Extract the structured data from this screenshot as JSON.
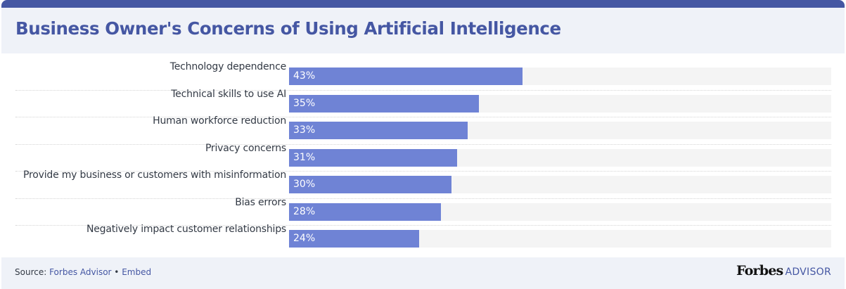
{
  "header": {
    "title": "Business Owner's Concerns of Using Artificial Intelligence"
  },
  "colors": {
    "brand": "#4557a3",
    "bar": "#6f83d5",
    "track": "#f4f4f4",
    "panel_bg": "#eff2f8"
  },
  "chart_data": {
    "type": "bar",
    "orientation": "horizontal",
    "title": "Business Owner's Concerns of Using Artificial Intelligence",
    "xlabel": "",
    "ylabel": "",
    "xlim": [
      0,
      100
    ],
    "grid": false,
    "legend": null,
    "categories": [
      "Technology dependence",
      "Technical skills to use AI",
      "Human workforce reduction",
      "Privacy concerns",
      "Provide my business or customers with misinformation",
      "Bias errors",
      "Negatively impact customer relationships"
    ],
    "values": [
      43,
      35,
      33,
      31,
      30,
      28,
      24
    ],
    "value_labels": [
      "43%",
      "35%",
      "33%",
      "31%",
      "30%",
      "28%",
      "24%"
    ],
    "unit": "%"
  },
  "footer": {
    "source_prefix": "Source: ",
    "source_link": "Forbes Advisor",
    "separator": " • ",
    "embed_link": "Embed",
    "logo_main": "Forbes",
    "logo_sub": "ADVISOR"
  }
}
